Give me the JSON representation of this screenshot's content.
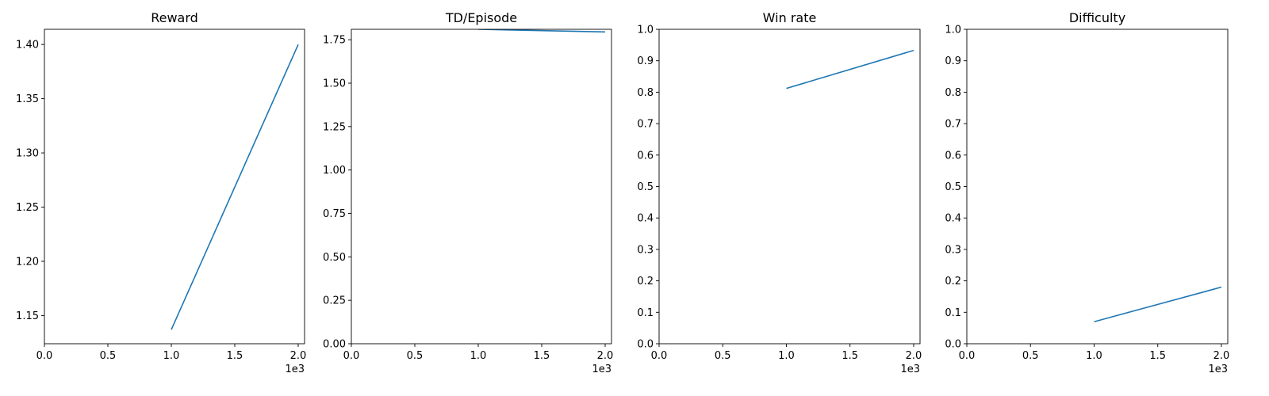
{
  "chart_data": [
    {
      "type": "line",
      "title": "Reward",
      "xlim": [
        0,
        2050
      ],
      "ylim": [
        1.124,
        1.414
      ],
      "xticks": [
        0,
        500,
        1000,
        1500,
        2000
      ],
      "xtick_labels": [
        "0.0",
        "0.5",
        "1.0",
        "1.5",
        "2.0"
      ],
      "x_offset_label": "1e3",
      "yticks": [
        1.15,
        1.2,
        1.25,
        1.3,
        1.35,
        1.4
      ],
      "ytick_labels": [
        "1.15",
        "1.20",
        "1.25",
        "1.30",
        "1.35",
        "1.40"
      ],
      "grid": false,
      "line_color": "#1f77b4",
      "series": [
        {
          "x": [
            1000,
            2000
          ],
          "y": [
            1.137,
            1.4
          ]
        }
      ]
    },
    {
      "type": "line",
      "title": "TD/Episode",
      "xlim": [
        0,
        2050
      ],
      "ylim": [
        0,
        1.81
      ],
      "xticks": [
        0,
        500,
        1000,
        1500,
        2000
      ],
      "xtick_labels": [
        "0.0",
        "0.5",
        "1.0",
        "1.5",
        "2.0"
      ],
      "x_offset_label": "1e3",
      "yticks": [
        0,
        0.25,
        0.5,
        0.75,
        1.0,
        1.25,
        1.5,
        1.75
      ],
      "ytick_labels": [
        "0.00",
        "0.25",
        "0.50",
        "0.75",
        "1.00",
        "1.25",
        "1.50",
        "1.75"
      ],
      "grid": false,
      "line_color": "#1f77b4",
      "series": [
        {
          "x": [
            1000,
            2000
          ],
          "y": [
            1.81,
            1.795
          ]
        }
      ]
    },
    {
      "type": "line",
      "title": "Win rate",
      "xlim": [
        0,
        2050
      ],
      "ylim": [
        0,
        1.0
      ],
      "xticks": [
        0,
        500,
        1000,
        1500,
        2000
      ],
      "xtick_labels": [
        "0.0",
        "0.5",
        "1.0",
        "1.5",
        "2.0"
      ],
      "x_offset_label": "1e3",
      "yticks": [
        0,
        0.1,
        0.2,
        0.3,
        0.4,
        0.5,
        0.6,
        0.7,
        0.8,
        0.9,
        1.0
      ],
      "ytick_labels": [
        "0.0",
        "0.1",
        "0.2",
        "0.3",
        "0.4",
        "0.5",
        "0.6",
        "0.7",
        "0.8",
        "0.9",
        "1.0"
      ],
      "grid": false,
      "line_color": "#1f77b4",
      "series": [
        {
          "x": [
            1000,
            2000
          ],
          "y": [
            0.812,
            0.933
          ]
        }
      ]
    },
    {
      "type": "line",
      "title": "Difficulty",
      "xlim": [
        0,
        2050
      ],
      "ylim": [
        0,
        1.0
      ],
      "xticks": [
        0,
        500,
        1000,
        1500,
        2000
      ],
      "xtick_labels": [
        "0.0",
        "0.5",
        "1.0",
        "1.5",
        "2.0"
      ],
      "x_offset_label": "1e3",
      "yticks": [
        0,
        0.1,
        0.2,
        0.3,
        0.4,
        0.5,
        0.6,
        0.7,
        0.8,
        0.9,
        1.0
      ],
      "ytick_labels": [
        "0.0",
        "0.1",
        "0.2",
        "0.3",
        "0.4",
        "0.5",
        "0.6",
        "0.7",
        "0.8",
        "0.9",
        "1.0"
      ],
      "grid": false,
      "line_color": "#1f77b4",
      "series": [
        {
          "x": [
            1000,
            2000
          ],
          "y": [
            0.07,
            0.18
          ]
        }
      ]
    }
  ]
}
